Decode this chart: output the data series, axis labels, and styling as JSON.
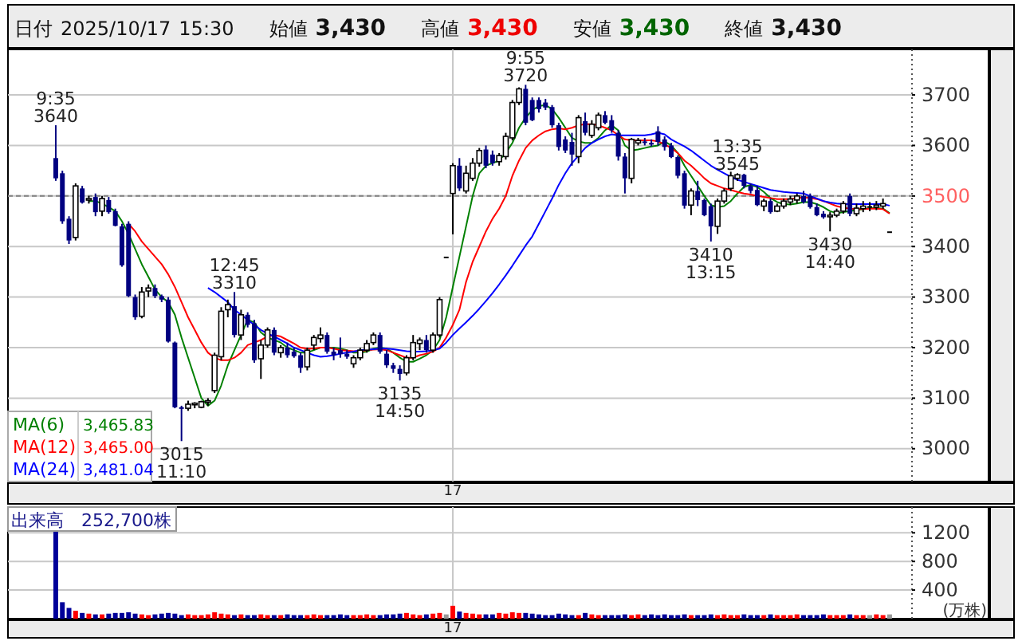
{
  "chart_data": [
    {
      "type": "candlestick",
      "title": "日付 2025/10/17 15:30 始値 3,430 高値 3,430 安値 3,430 終値 3,430",
      "categories": [
        null,
        null,
        null,
        null,
        null,
        null,
        null,
        null,
        null,
        null,
        null,
        null,
        null,
        null,
        null,
        null,
        null,
        null,
        null,
        null,
        null,
        null,
        null,
        null,
        null,
        null,
        null,
        null,
        null,
        null,
        null,
        null,
        null,
        null,
        null,
        null,
        null,
        null,
        null,
        null,
        null,
        null,
        null,
        null,
        null,
        null,
        null,
        null,
        null,
        null,
        null,
        null,
        null,
        null,
        null,
        null,
        null,
        null,
        null,
        null,
        "17",
        null,
        null,
        null,
        null,
        null,
        null,
        null,
        null,
        null,
        null,
        null,
        null,
        null,
        null,
        null,
        null,
        null,
        null,
        null,
        null,
        null,
        null,
        null,
        null,
        null,
        null,
        null,
        null,
        null,
        null,
        null,
        null,
        null,
        null,
        null,
        null,
        null,
        null,
        null,
        null,
        null,
        null,
        null,
        null,
        null,
        null,
        null,
        null,
        null,
        null,
        null,
        null,
        null,
        null,
        null,
        null,
        null,
        null,
        null,
        null,
        null,
        null,
        null,
        null,
        null,
        null
      ],
      "ohlc": [
        [
          3575,
          3640,
          3530,
          3535
        ],
        [
          3545,
          3550,
          3445,
          3450
        ],
        [
          3455,
          3460,
          3405,
          3412
        ],
        [
          3418,
          3525,
          3412,
          3520
        ],
        [
          3515,
          3520,
          3485,
          3487
        ],
        [
          3492,
          3500,
          3485,
          3495
        ],
        [
          3498,
          3505,
          3460,
          3468
        ],
        [
          3470,
          3500,
          3460,
          3495
        ],
        [
          3492,
          3498,
          3465,
          3468
        ],
        [
          3470,
          3475,
          3440,
          3441
        ],
        [
          3440,
          3445,
          3360,
          3363
        ],
        [
          3445,
          3450,
          3300,
          3302
        ],
        [
          3300,
          3305,
          3255,
          3260
        ],
        [
          3262,
          3320,
          3258,
          3310
        ],
        [
          3312,
          3325,
          3300,
          3318
        ],
        [
          3318,
          3325,
          3298,
          3302
        ],
        [
          3302,
          3305,
          3290,
          3295
        ],
        [
          3295,
          3300,
          3210,
          3212
        ],
        [
          3210,
          3212,
          3080,
          3082
        ],
        [
          3082,
          3085,
          3015,
          3080
        ],
        [
          3080,
          3095,
          3075,
          3088
        ],
        [
          3088,
          3092,
          3080,
          3090
        ],
        [
          3082,
          3095,
          3080,
          3093
        ],
        [
          3093,
          3100,
          3085,
          3095
        ],
        [
          3115,
          3190,
          3110,
          3185
        ],
        [
          3182,
          3280,
          3175,
          3272
        ],
        [
          3275,
          3295,
          3260,
          3285
        ],
        [
          3282,
          3310,
          3220,
          3225
        ],
        [
          3225,
          3275,
          3215,
          3265
        ],
        [
          3265,
          3270,
          3240,
          3245
        ],
        [
          3248,
          3255,
          3170,
          3175
        ],
        [
          3178,
          3215,
          3138,
          3205
        ],
        [
          3205,
          3240,
          3200,
          3235
        ],
        [
          3235,
          3240,
          3185,
          3190
        ],
        [
          3190,
          3205,
          3180,
          3200
        ],
        [
          3200,
          3210,
          3180,
          3185
        ],
        [
          3192,
          3200,
          3180,
          3183
        ],
        [
          3185,
          3190,
          3150,
          3160
        ],
        [
          3162,
          3200,
          3155,
          3195
        ],
        [
          3205,
          3225,
          3195,
          3220
        ],
        [
          3218,
          3240,
          3210,
          3225
        ],
        [
          3225,
          3230,
          3188,
          3192
        ],
        [
          3192,
          3200,
          3175,
          3185
        ],
        [
          3195,
          3220,
          3180,
          3187
        ],
        [
          3188,
          3195,
          3178,
          3182
        ],
        [
          3168,
          3185,
          3160,
          3180
        ],
        [
          3180,
          3200,
          3175,
          3195
        ],
        [
          3195,
          3215,
          3190,
          3208
        ],
        [
          3210,
          3230,
          3205,
          3225
        ],
        [
          3225,
          3230,
          3188,
          3192
        ],
        [
          3188,
          3195,
          3160,
          3165
        ],
        [
          3165,
          3170,
          3150,
          3158
        ],
        [
          3158,
          3165,
          3135,
          3148
        ],
        [
          3150,
          3185,
          3145,
          3180
        ],
        [
          3180,
          3225,
          3175,
          3210
        ],
        [
          3208,
          3220,
          3195,
          3215
        ],
        [
          3215,
          3225,
          3190,
          3195
        ],
        [
          3195,
          3230,
          3190,
          3225
        ],
        [
          3225,
          3300,
          3220,
          3295
        ],
        [
          3380,
          3380,
          3380,
          3380
        ],
        [
          3505,
          3565,
          3424,
          3560
        ],
        [
          3560,
          3575,
          3510,
          3515
        ],
        [
          3510,
          3560,
          3505,
          3545
        ],
        [
          3535,
          3575,
          3530,
          3565
        ],
        [
          3565,
          3595,
          3558,
          3590
        ],
        [
          3592,
          3600,
          3555,
          3560
        ],
        [
          3582,
          3590,
          3560,
          3565
        ],
        [
          3568,
          3585,
          3560,
          3580
        ],
        [
          3578,
          3625,
          3572,
          3618
        ],
        [
          3615,
          3690,
          3610,
          3685
        ],
        [
          3685,
          3715,
          3680,
          3712
        ],
        [
          3712,
          3720,
          3640,
          3645
        ],
        [
          3690,
          3695,
          3648,
          3650
        ],
        [
          3690,
          3695,
          3665,
          3672
        ],
        [
          3685,
          3692,
          3670,
          3675
        ],
        [
          3676,
          3680,
          3635,
          3640
        ],
        [
          3640,
          3645,
          3590,
          3597
        ],
        [
          3612,
          3618,
          3585,
          3590
        ],
        [
          3607,
          3625,
          3560,
          3582
        ],
        [
          3578,
          3660,
          3565,
          3655
        ],
        [
          3648,
          3665,
          3620,
          3625
        ],
        [
          3620,
          3650,
          3615,
          3642
        ],
        [
          3635,
          3665,
          3630,
          3660
        ],
        [
          3660,
          3668,
          3642,
          3645
        ],
        [
          3650,
          3660,
          3625,
          3630
        ],
        [
          3625,
          3630,
          3570,
          3578
        ],
        [
          3578,
          3585,
          3505,
          3535
        ],
        [
          3535,
          3615,
          3525,
          3612
        ],
        [
          3605,
          3615,
          3600,
          3610
        ],
        [
          3608,
          3615,
          3600,
          3606
        ],
        [
          3605,
          3612,
          3598,
          3603
        ],
        [
          3628,
          3638,
          3600,
          3607
        ],
        [
          3612,
          3618,
          3590,
          3597
        ],
        [
          3600,
          3605,
          3575,
          3577
        ],
        [
          3577,
          3580,
          3535,
          3540
        ],
        [
          3545,
          3550,
          3475,
          3481
        ],
        [
          3482,
          3515,
          3462,
          3510
        ],
        [
          3510,
          3530,
          3480,
          3492
        ],
        [
          3492,
          3495,
          3460,
          3462
        ],
        [
          3480,
          3485,
          3410,
          3440
        ],
        [
          3440,
          3495,
          3425,
          3490
        ],
        [
          3490,
          3515,
          3485,
          3510
        ],
        [
          3515,
          3548,
          3510,
          3540
        ],
        [
          3535,
          3545,
          3530,
          3542
        ],
        [
          3542,
          3544,
          3515,
          3520
        ],
        [
          3520,
          3525,
          3505,
          3510
        ],
        [
          3512,
          3520,
          3480,
          3482
        ],
        [
          3480,
          3495,
          3470,
          3490
        ],
        [
          3490,
          3495,
          3465,
          3468
        ],
        [
          3470,
          3485,
          3468,
          3480
        ],
        [
          3480,
          3495,
          3475,
          3490
        ],
        [
          3488,
          3500,
          3482,
          3494
        ],
        [
          3492,
          3505,
          3485,
          3500
        ],
        [
          3500,
          3510,
          3485,
          3488
        ],
        [
          3500,
          3505,
          3475,
          3478
        ],
        [
          3478,
          3485,
          3460,
          3462
        ],
        [
          3465,
          3470,
          3455,
          3458
        ],
        [
          3460,
          3468,
          3430,
          3462
        ],
        [
          3462,
          3475,
          3458,
          3470
        ],
        [
          3470,
          3490,
          3465,
          3485
        ],
        [
          3500,
          3505,
          3460,
          3465
        ],
        [
          3465,
          3485,
          3460,
          3476
        ],
        [
          3475,
          3490,
          3468,
          3480
        ],
        [
          3480,
          3488,
          3470,
          3480
        ],
        [
          3478,
          3490,
          3472,
          3482
        ],
        [
          3480,
          3495,
          3475,
          3485
        ],
        [
          3430,
          3430,
          3430,
          3430
        ]
      ],
      "series": [
        {
          "name": "MA(6)",
          "type": "line",
          "color": "#008000",
          "values": [
            null,
            null,
            null,
            null,
            null,
            3490,
            3490,
            3485,
            3478,
            3470,
            3450,
            3425,
            3395,
            3365,
            3340,
            3315,
            3300,
            3290,
            3265,
            3220,
            3180,
            3140,
            3100,
            3085,
            3095,
            3125,
            3165,
            3195,
            3225,
            3255,
            3250,
            3230,
            3220,
            3215,
            3210,
            3200,
            3195,
            3190,
            3190,
            3195,
            3200,
            3200,
            3200,
            3198,
            3195,
            3190,
            3190,
            3192,
            3198,
            3200,
            3198,
            3190,
            3180,
            3172,
            3172,
            3178,
            3185,
            3195,
            3215,
            3260,
            3320,
            3380,
            3440,
            3500,
            3545,
            3560,
            3565,
            3570,
            3585,
            3605,
            3635,
            3655,
            3670,
            3678,
            3680,
            3672,
            3655,
            3635,
            3615,
            3608,
            3605,
            3605,
            3615,
            3630,
            3640,
            3630,
            3600,
            3590,
            3592,
            3595,
            3598,
            3600,
            3608,
            3600,
            3585,
            3560,
            3540,
            3520,
            3500,
            3482,
            3478,
            3480,
            3490,
            3505,
            3518,
            3522,
            3518,
            3508,
            3496,
            3488,
            3484,
            3483,
            3485,
            3488,
            3488,
            3484,
            3478,
            3470,
            3466,
            3468,
            3470,
            3472,
            3474,
            3476,
            3476,
            3475,
            3466
          ]
        },
        {
          "name": "MA(12)",
          "type": "line",
          "color": "#ff0000",
          "values": [
            null,
            null,
            null,
            null,
            null,
            null,
            null,
            null,
            null,
            null,
            null,
            3445,
            3430,
            3410,
            3395,
            3380,
            3365,
            3345,
            3320,
            3290,
            3260,
            3235,
            3210,
            3190,
            3180,
            3175,
            3175,
            3180,
            3190,
            3205,
            3210,
            3215,
            3222,
            3225,
            3222,
            3215,
            3208,
            3200,
            3198,
            3198,
            3200,
            3200,
            3198,
            3195,
            3194,
            3193,
            3193,
            3195,
            3196,
            3197,
            3195,
            3190,
            3185,
            3180,
            3180,
            3185,
            3188,
            3192,
            3200,
            3220,
            3245,
            3275,
            3330,
            3370,
            3400,
            3430,
            3455,
            3475,
            3500,
            3540,
            3570,
            3595,
            3610,
            3620,
            3628,
            3632,
            3634,
            3632,
            3635,
            3640,
            3642,
            3642,
            3640,
            3635,
            3630,
            3620,
            3612,
            3610,
            3610,
            3610,
            3610,
            3608,
            3602,
            3595,
            3585,
            3570,
            3560,
            3548,
            3535,
            3525,
            3520,
            3515,
            3512,
            3508,
            3505,
            3503,
            3500,
            3498,
            3496,
            3494,
            3494,
            3494,
            3496,
            3497,
            3496,
            3494,
            3490,
            3485,
            3480,
            3477,
            3475,
            3474,
            3474,
            3475,
            3475,
            3474,
            3465
          ]
        },
        {
          "name": "MA(24)",
          "type": "line",
          "color": "#0000ff",
          "values": [
            null,
            null,
            null,
            null,
            null,
            null,
            null,
            null,
            null,
            null,
            null,
            null,
            null,
            null,
            null,
            null,
            null,
            null,
            null,
            null,
            null,
            null,
            null,
            3318,
            3310,
            3300,
            3290,
            3275,
            3265,
            3255,
            3245,
            3235,
            3228,
            3222,
            3215,
            3208,
            3200,
            3195,
            3190,
            3185,
            3182,
            3183,
            3185,
            3188,
            3190,
            3192,
            3195,
            3196,
            3197,
            3198,
            3198,
            3197,
            3195,
            3193,
            3192,
            3192,
            3193,
            3195,
            3198,
            3210,
            3225,
            3238,
            3250,
            3263,
            3277,
            3292,
            3308,
            3325,
            3343,
            3362,
            3382,
            3402,
            3420,
            3445,
            3470,
            3495,
            3522,
            3545,
            3565,
            3580,
            3595,
            3605,
            3612,
            3618,
            3622,
            3620,
            3620,
            3620,
            3620,
            3620,
            3622,
            3625,
            3622,
            3612,
            3605,
            3598,
            3590,
            3580,
            3570,
            3560,
            3552,
            3545,
            3538,
            3532,
            3528,
            3524,
            3520,
            3516,
            3512,
            3510,
            3508,
            3507,
            3506,
            3505,
            3500,
            3495,
            3490,
            3487,
            3485,
            3484,
            3484,
            3484,
            3484,
            3484,
            3484,
            3484,
            3481
          ]
        }
      ],
      "ylim": [
        2935,
        3790
      ],
      "yticks": [
        3000,
        3100,
        3200,
        3300,
        3400,
        3500,
        3600,
        3700
      ],
      "ref_lines": [
        {
          "axis": "y",
          "value": 3500,
          "color": "#808080",
          "line_style": "dashed"
        }
      ],
      "grid": true,
      "legend": "bottom left",
      "annotations": [
        {
          "text": "9:35\n3640",
          "y": 3640
        },
        {
          "text": "3015\n11:10",
          "y": 3015
        },
        {
          "text": "12:45\n3310",
          "y": 3310
        },
        {
          "text": "3135\n14:50",
          "y": 3135
        },
        {
          "text": "9:55\n3720",
          "y": 3720
        },
        {
          "text": "3410\n13:15",
          "y": 3410
        },
        {
          "text": "13:35\n3545",
          "y": 3545
        },
        {
          "text": "3430\n14:40",
          "y": 3430
        },
        "3,465.83",
        "3,465.00",
        "3,481.04"
      ]
    },
    {
      "type": "bar",
      "title": "出来高　252,700株",
      "ylabel": "(万株)",
      "categories": [
        null,
        null,
        null,
        null,
        null,
        null,
        null,
        null,
        null,
        null,
        null,
        null,
        null,
        null,
        null,
        null,
        null,
        null,
        null,
        null,
        null,
        null,
        null,
        null,
        null,
        null,
        null,
        null,
        null,
        null,
        null,
        null,
        null,
        null,
        null,
        null,
        null,
        null,
        null,
        null,
        null,
        null,
        null,
        null,
        null,
        null,
        null,
        null,
        null,
        null,
        null,
        null,
        null,
        null,
        null,
        null,
        null,
        null,
        null,
        null,
        "17",
        null,
        null,
        null,
        null,
        null,
        null,
        null,
        null,
        null,
        null,
        null,
        null,
        null,
        null,
        null,
        null,
        null,
        null,
        null,
        null,
        null,
        null,
        null,
        null,
        null,
        null,
        null,
        null,
        null,
        null,
        null,
        null,
        null,
        null,
        null,
        null,
        null,
        null,
        null,
        null,
        null,
        null,
        null,
        null,
        null,
        null,
        null,
        null,
        null,
        null,
        null,
        null,
        null,
        null,
        null,
        null,
        null,
        null,
        null,
        null,
        null,
        null,
        null,
        null,
        null,
        null
      ],
      "values": [
        1260,
        230,
        150,
        110,
        80,
        70,
        60,
        60,
        70,
        80,
        80,
        90,
        70,
        60,
        50,
        60,
        70,
        80,
        70,
        50,
        60,
        50,
        50,
        60,
        90,
        70,
        60,
        50,
        60,
        50,
        50,
        60,
        50,
        50,
        50,
        60,
        50,
        50,
        50,
        60,
        50,
        50,
        50,
        60,
        50,
        50,
        50,
        60,
        50,
        50,
        60,
        60,
        70,
        80,
        60,
        50,
        60,
        70,
        80,
        60,
        180,
        100,
        80,
        70,
        60,
        60,
        60,
        80,
        70,
        90,
        80,
        80,
        70,
        60,
        50,
        50,
        70,
        60,
        50,
        50,
        80,
        60,
        50,
        50,
        50,
        50,
        60,
        50,
        60,
        50,
        60,
        50,
        60,
        50,
        50,
        60,
        50,
        50,
        50,
        60,
        50,
        60,
        50,
        50,
        60,
        50,
        50,
        50,
        60,
        50,
        50,
        50,
        60,
        50,
        50,
        50,
        60,
        50,
        50,
        50,
        60,
        50,
        50,
        50,
        60,
        50,
        60
      ],
      "colors": [
        "#000099",
        "#000099",
        "#000099",
        "#ff0000",
        "#000099",
        "#ff0000",
        "#000099",
        "#ff0000",
        "#000099",
        "#000099",
        "#000099",
        "#000099",
        "#000099",
        "#ff0000",
        "#ff0000",
        "#000099",
        "#000099",
        "#000099",
        "#000099",
        "#000099",
        "#ff0000",
        "#ff0000",
        "#ff0000",
        "#ff0000",
        "#ff0000",
        "#ff0000",
        "#ff0000",
        "#000099",
        "#ff0000",
        "#000099",
        "#000099",
        "#ff0000",
        "#ff0000",
        "#000099",
        "#ff0000",
        "#000099",
        "#000099",
        "#000099",
        "#ff0000",
        "#ff0000",
        "#ff0000",
        "#000099",
        "#000099",
        "#000099",
        "#000099",
        "#ff0000",
        "#ff0000",
        "#ff0000",
        "#ff0000",
        "#000099",
        "#000099",
        "#000099",
        "#000099",
        "#ff0000",
        "#ff0000",
        "#ff0000",
        "#000099",
        "#ff0000",
        "#ff0000",
        "#999999",
        "#ff0000",
        "#000099",
        "#ff0000",
        "#ff0000",
        "#ff0000",
        "#000099",
        "#000099",
        "#ff0000",
        "#ff0000",
        "#ff0000",
        "#ff0000",
        "#000099",
        "#000099",
        "#000099",
        "#000099",
        "#000099",
        "#000099",
        "#000099",
        "#000099",
        "#ff0000",
        "#000099",
        "#ff0000",
        "#ff0000",
        "#000099",
        "#000099",
        "#000099",
        "#000099",
        "#ff0000",
        "#ff0000",
        "#000099",
        "#000099",
        "#000099",
        "#000099",
        "#000099",
        "#000099",
        "#000099",
        "#ff0000",
        "#000099",
        "#000099",
        "#000099",
        "#ff0000",
        "#ff0000",
        "#ff0000",
        "#ff0000",
        "#000099",
        "#000099",
        "#000099",
        "#ff0000",
        "#000099",
        "#ff0000",
        "#ff0000",
        "#ff0000",
        "#ff0000",
        "#000099",
        "#000099",
        "#000099",
        "#000099",
        "#ff0000",
        "#ff0000",
        "#ff0000",
        "#000099",
        "#ff0000",
        "#ff0000",
        "#999999",
        "#ff0000",
        "#ff0000",
        "#999999"
      ],
      "ylim": [
        0,
        1560
      ],
      "yticks": [
        400,
        800,
        1200
      ],
      "grid": true
    }
  ]
}
